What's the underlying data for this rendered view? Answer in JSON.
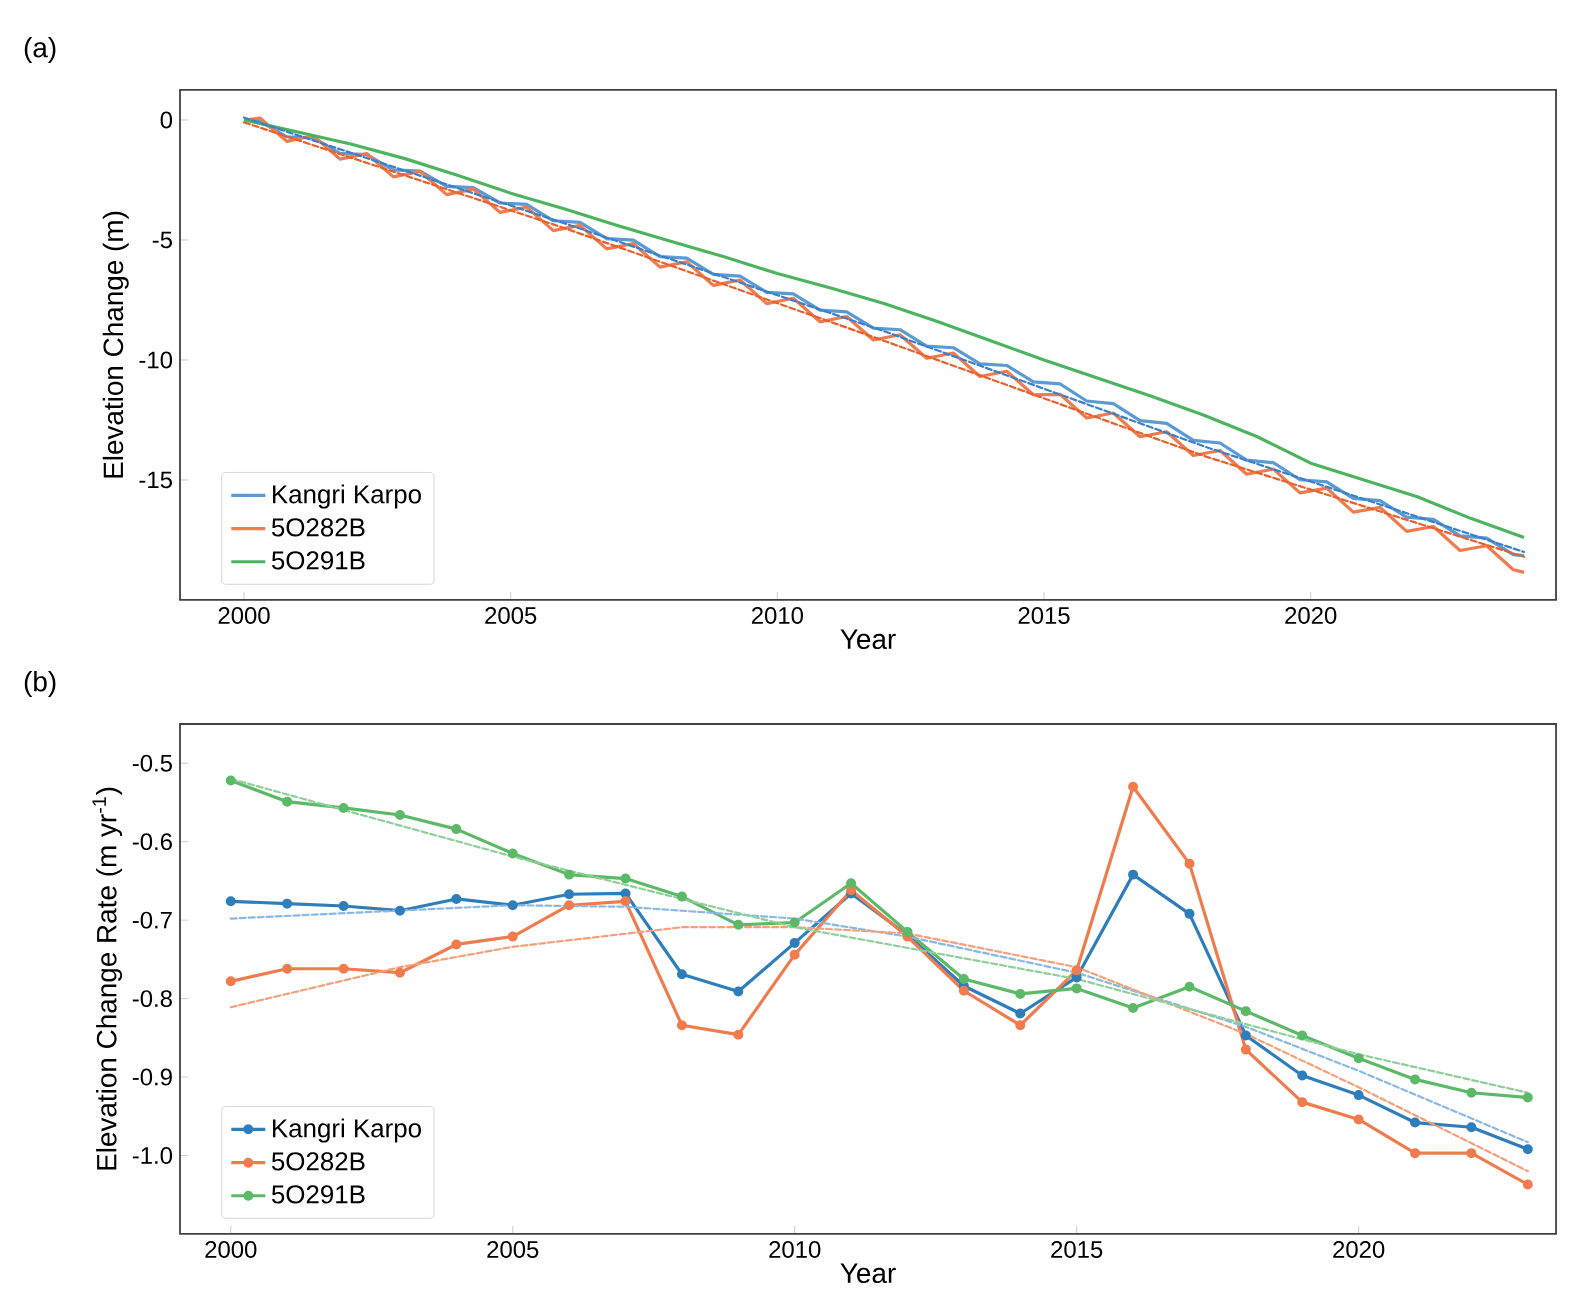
{
  "chart_data": [
    {
      "type": "line",
      "title": "(a)",
      "xlabel": "Year",
      "ylabel": "Elevation Change (m)",
      "xlim": [
        1998.8,
        2024.6
      ],
      "ylim": [
        -20,
        1.25
      ],
      "xticks": [
        2000,
        2005,
        2010,
        2015,
        2020
      ],
      "yticks": [
        0,
        -5,
        -10,
        -15
      ],
      "legend": "bottom left",
      "marker": "none",
      "series": [
        {
          "name": "Kangri Karpo",
          "color": "#5a9bd5",
          "line_style": "solid",
          "x": [
            2000.0,
            2000.3,
            2000.8,
            2001.3,
            2001.8,
            2002.3,
            2002.8,
            2003.3,
            2003.8,
            2004.3,
            2004.8,
            2005.3,
            2005.8,
            2006.3,
            2006.8,
            2007.3,
            2007.8,
            2008.3,
            2008.8,
            2009.3,
            2009.8,
            2010.3,
            2010.8,
            2011.3,
            2011.8,
            2012.3,
            2012.8,
            2013.3,
            2013.8,
            2014.3,
            2014.8,
            2015.3,
            2015.8,
            2016.3,
            2016.8,
            2017.3,
            2017.8,
            2018.3,
            2018.8,
            2019.3,
            2019.8,
            2020.3,
            2020.8,
            2021.3,
            2021.8,
            2022.3,
            2022.8,
            2023.3,
            2023.8,
            2024.0
          ],
          "values": [
            0,
            -0.06,
            -0.7,
            -0.75,
            -1.39,
            -1.44,
            -2.08,
            -2.13,
            -2.77,
            -2.82,
            -3.46,
            -3.52,
            -4.2,
            -4.27,
            -4.94,
            -5.01,
            -5.69,
            -5.76,
            -6.43,
            -6.51,
            -7.18,
            -7.25,
            -7.92,
            -8.0,
            -8.67,
            -8.74,
            -9.42,
            -9.49,
            -10.16,
            -10.23,
            -10.91,
            -11.0,
            -11.71,
            -11.82,
            -12.53,
            -12.64,
            -13.35,
            -13.46,
            -14.17,
            -14.28,
            -14.99,
            -15.08,
            -15.77,
            -15.86,
            -16.55,
            -16.64,
            -17.33,
            -17.42,
            -18.11,
            -18.15
          ]
        },
        {
          "name": "5O282B",
          "color": "#f07c4e",
          "line_style": "solid",
          "x": [
            2000.0,
            2000.3,
            2000.8,
            2001.3,
            2001.8,
            2002.3,
            2002.8,
            2003.3,
            2003.8,
            2004.3,
            2004.8,
            2005.3,
            2005.8,
            2006.3,
            2006.8,
            2007.3,
            2007.8,
            2008.3,
            2008.8,
            2009.3,
            2009.8,
            2010.3,
            2010.8,
            2011.3,
            2011.8,
            2012.3,
            2012.8,
            2013.3,
            2013.8,
            2014.3,
            2014.8,
            2015.3,
            2015.8,
            2016.3,
            2016.8,
            2017.3,
            2017.8,
            2018.3,
            2018.8,
            2019.3,
            2019.8,
            2020.3,
            2020.8,
            2021.3,
            2021.8,
            2022.3,
            2022.8,
            2023.3,
            2023.8,
            2024.0
          ],
          "values": [
            0,
            0.08,
            -0.89,
            -0.66,
            -1.63,
            -1.4,
            -2.37,
            -2.14,
            -3.11,
            -2.88,
            -3.85,
            -3.63,
            -4.61,
            -4.39,
            -5.37,
            -5.15,
            -6.13,
            -5.91,
            -6.89,
            -6.67,
            -7.65,
            -7.43,
            -8.41,
            -8.19,
            -9.17,
            -8.95,
            -9.93,
            -9.71,
            -10.69,
            -10.47,
            -11.45,
            -11.43,
            -12.42,
            -12.21,
            -13.2,
            -12.99,
            -13.98,
            -13.77,
            -14.76,
            -14.55,
            -15.54,
            -15.34,
            -16.34,
            -16.14,
            -17.14,
            -16.94,
            -17.94,
            -17.74,
            -18.74,
            -18.85
          ]
        },
        {
          "name": "5O291B",
          "color": "#4cb35e",
          "line_style": "solid",
          "x": [
            2000,
            2001,
            2002,
            2003,
            2004,
            2005,
            2006,
            2007,
            2008,
            2009,
            2010,
            2011,
            2012,
            2013,
            2014,
            2015,
            2016,
            2017,
            2018,
            2019,
            2020,
            2021,
            2022,
            2023,
            2024
          ],
          "values": [
            0,
            -0.5,
            -1.0,
            -1.6,
            -2.3,
            -3.05,
            -3.7,
            -4.4,
            -5.05,
            -5.7,
            -6.4,
            -7.0,
            -7.65,
            -8.4,
            -9.2,
            -10.0,
            -10.75,
            -11.5,
            -12.3,
            -13.2,
            -14.3,
            -15.0,
            -15.7,
            -16.6,
            -17.4
          ]
        },
        {
          "color": "#3a7fc8",
          "line_style": "dashed",
          "x": [
            2000,
            2006,
            2012,
            2018,
            2024
          ],
          "values": [
            0.1,
            -4.3,
            -8.8,
            -13.6,
            -18.0
          ]
        },
        {
          "color": "#e8602c",
          "line_style": "dashed",
          "x": [
            2000,
            2006,
            2012,
            2018,
            2024
          ],
          "values": [
            -0.1,
            -4.5,
            -9.2,
            -14.0,
            -18.2
          ]
        }
      ]
    },
    {
      "type": "line",
      "title": "(b)",
      "xlabel": "Year",
      "ylabel": "Elevation Change Rate (m yr$^{-1}$)",
      "xlim": [
        1999.1,
        2023.5
      ],
      "ylim": [
        -1.1,
        -0.45
      ],
      "xticks": [
        2000,
        2005,
        2010,
        2015,
        2020
      ],
      "yticks": [
        -0.5,
        -0.6,
        -0.7,
        -0.8,
        -0.9,
        {
          "value": -1.0,
          "label": "-1.0"
        }
      ],
      "legend": "bottom left",
      "marker": "circle",
      "x": [
        2000,
        2001,
        2002,
        2003,
        2004,
        2005,
        2006,
        2007,
        2008,
        2009,
        2010,
        2011,
        2012,
        2013,
        2014,
        2015,
        2016,
        2017,
        2018,
        2019,
        2020,
        2021,
        2022,
        2023
      ],
      "series": [
        {
          "name": "Kangri Karpo",
          "color": "#2e7ebc",
          "line_style": "solid",
          "values": [
            -0.676,
            -0.679,
            -0.682,
            -0.688,
            -0.673,
            -0.681,
            -0.667,
            -0.666,
            -0.769,
            -0.791,
            -0.729,
            -0.666,
            -0.719,
            -0.784,
            -0.819,
            -0.773,
            -0.642,
            -0.692,
            -0.847,
            -0.898,
            -0.923,
            -0.958,
            -0.964,
            -0.992
          ]
        },
        {
          "name": "5O282B",
          "color": "#f07c4e",
          "line_style": "solid",
          "values": [
            -0.778,
            -0.762,
            -0.762,
            -0.767,
            -0.731,
            -0.721,
            -0.681,
            -0.676,
            -0.834,
            -0.846,
            -0.744,
            -0.662,
            -0.721,
            -0.79,
            -0.834,
            -0.764,
            -0.53,
            -0.628,
            -0.865,
            -0.932,
            -0.954,
            -0.997,
            -0.997,
            -1.037
          ]
        },
        {
          "name": "5O291B",
          "color": "#5cb968",
          "line_style": "solid",
          "values": [
            -0.522,
            -0.549,
            -0.557,
            -0.566,
            -0.584,
            -0.615,
            -0.642,
            -0.647,
            -0.67,
            -0.706,
            -0.703,
            -0.653,
            -0.715,
            -0.775,
            -0.794,
            -0.787,
            -0.812,
            -0.785,
            -0.816,
            -0.847,
            -0.876,
            -0.903,
            -0.92,
            -0.926
          ]
        },
        {
          "color": "#8ab8e6",
          "line_style": "dashed",
          "marker": "none",
          "x": [
            2000,
            2005,
            2007,
            2010,
            2012,
            2015,
            2018,
            2020,
            2023
          ],
          "values": [
            -0.698,
            -0.681,
            -0.683,
            -0.698,
            -0.721,
            -0.767,
            -0.836,
            -0.892,
            -0.983
          ]
        },
        {
          "color": "#f4a07a",
          "line_style": "dashed",
          "marker": "none",
          "x": [
            2000,
            2003,
            2005,
            2008,
            2010,
            2012,
            2015,
            2018,
            2020,
            2023
          ],
          "values": [
            -0.811,
            -0.76,
            -0.734,
            -0.709,
            -0.709,
            -0.717,
            -0.76,
            -0.845,
            -0.913,
            -1.02
          ]
        },
        {
          "color": "#8fd09a",
          "line_style": "dashed",
          "marker": "none",
          "x": [
            2000,
            2005,
            2010,
            2015,
            2020,
            2023
          ],
          "values": [
            -0.52,
            -0.619,
            -0.709,
            -0.775,
            -0.871,
            -0.92
          ]
        }
      ]
    }
  ]
}
